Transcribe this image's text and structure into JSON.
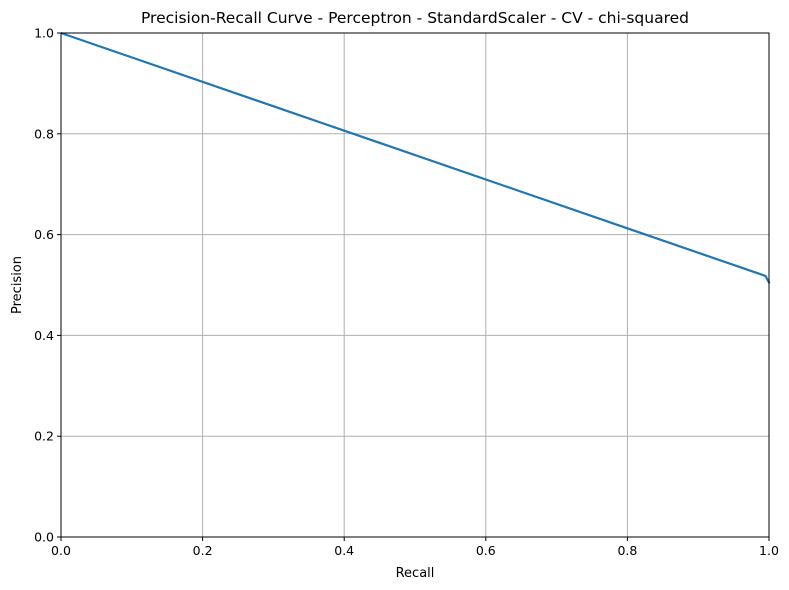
{
  "chart_data": {
    "type": "line",
    "title": "Precision-Recall Curve - Perceptron - StandardScaler - CV - chi-squared",
    "xlabel": "Recall",
    "ylabel": "Precision",
    "xlim": [
      0.0,
      1.0
    ],
    "ylim": [
      0.0,
      1.0
    ],
    "xticks": [
      "0.0",
      "0.2",
      "0.4",
      "0.6",
      "0.8",
      "1.0"
    ],
    "yticks": [
      "0.0",
      "0.2",
      "0.4",
      "0.6",
      "0.8",
      "1.0"
    ],
    "grid": true,
    "series": [
      {
        "color": "#1f77b4",
        "x": [
          0.0,
          0.995,
          1.0
        ],
        "y": [
          1.0,
          0.518,
          0.505
        ]
      }
    ]
  }
}
